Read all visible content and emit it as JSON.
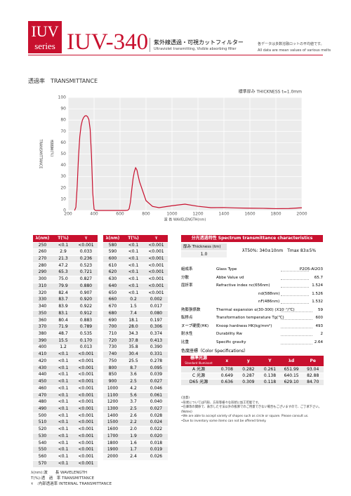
{
  "header": {
    "badge_top": "IUV",
    "badge_bottom": "series",
    "model": "IUV-340",
    "title_ja": "紫外線透過・可視カットフィルター",
    "title_en": "Ultraviolet transmitting, Visible absorbing filter",
    "note_ja": "各データは多数溶融ロットの平均値です。",
    "note_en": "All data are mean values of various melts"
  },
  "section_title": "透過率　TRANSMITTANCE",
  "chart_data": {
    "type": "line",
    "thickness_label": "標準厚み THICKNESS t=1.0mm",
    "ylabel_ja": "透過率(%)",
    "ylabel": "TRANSMITTANCE",
    "xlabel": "波 長 WAVELENGTH(nm)",
    "x": [
      250,
      260,
      270,
      280,
      290,
      300,
      310,
      320,
      330,
      340,
      350,
      360,
      370,
      380,
      390,
      400,
      410,
      450,
      500,
      600,
      640,
      660,
      670,
      680,
      690,
      700,
      710,
      720,
      730,
      740,
      750,
      800,
      850,
      900,
      1000,
      1100,
      1200,
      1300,
      1400,
      1500,
      1600,
      1700,
      1800,
      1900,
      2000
    ],
    "values": [
      0,
      2.9,
      21.3,
      47.2,
      65.3,
      75.0,
      79.9,
      82.4,
      83.7,
      83.9,
      83.1,
      80.4,
      71.9,
      48.7,
      15.5,
      1.2,
      0,
      0,
      0,
      0,
      0,
      0.2,
      1.5,
      7.4,
      18.1,
      28.0,
      34.3,
      37.8,
      35.8,
      30.4,
      25.5,
      8.7,
      3.6,
      2.5,
      4.2,
      5.6,
      3.7,
      2.5,
      2.6,
      2.2,
      2.0,
      1.9,
      1.6,
      1.7,
      2.4
    ],
    "color": "#c8102e",
    "xlim": [
      200,
      2000
    ],
    "xticks": [
      200,
      400,
      600,
      800,
      1000,
      1200,
      1400,
      1600,
      1800,
      2000
    ],
    "ylim": [
      0,
      100
    ],
    "yticks": [
      0,
      10,
      20,
      30,
      40,
      50,
      60,
      70,
      80,
      90,
      100
    ],
    "grid": true
  },
  "transmittance_table": {
    "columns": [
      "λ(nm)",
      "T(%)",
      "τ"
    ],
    "rows": [
      [
        "250",
        "<0.1",
        "<0.001"
      ],
      [
        "260",
        "2.9",
        "0.033"
      ],
      [
        "270",
        "21.3",
        "0.236"
      ],
      [
        "280",
        "47.2",
        "0.523"
      ],
      [
        "290",
        "65.3",
        "0.721"
      ],
      [
        "300",
        "75.0",
        "0.827"
      ],
      [
        "310",
        "79.9",
        "0.880"
      ],
      [
        "320",
        "82.4",
        "0.907"
      ],
      [
        "330",
        "83.7",
        "0.920"
      ],
      [
        "340",
        "83.9",
        "0.922"
      ],
      [
        "350",
        "83.1",
        "0.912"
      ],
      [
        "360",
        "80.4",
        "0.883"
      ],
      [
        "370",
        "71.9",
        "0.789"
      ],
      [
        "380",
        "48.7",
        "0.535"
      ],
      [
        "390",
        "15.5",
        "0.170"
      ],
      [
        "400",
        "1.2",
        "0.013"
      ],
      [
        "410",
        "<0.1",
        "<0.001"
      ],
      [
        "420",
        "<0.1",
        "<0.001"
      ],
      [
        "430",
        "<0.1",
        "<0.001"
      ],
      [
        "440",
        "<0.1",
        "<0.001"
      ],
      [
        "450",
        "<0.1",
        "<0.001"
      ],
      [
        "460",
        "<0.1",
        "<0.001"
      ],
      [
        "470",
        "<0.1",
        "<0.001"
      ],
      [
        "480",
        "<0.1",
        "<0.001"
      ],
      [
        "490",
        "<0.1",
        "<0.001"
      ],
      [
        "500",
        "<0.1",
        "<0.001"
      ],
      [
        "510",
        "<0.1",
        "<0.001"
      ],
      [
        "520",
        "<0.1",
        "<0.001"
      ],
      [
        "530",
        "<0.1",
        "<0.001"
      ],
      [
        "540",
        "<0.1",
        "<0.001"
      ],
      [
        "550",
        "<0.1",
        "<0.001"
      ],
      [
        "560",
        "<0.1",
        "<0.001"
      ],
      [
        "570",
        "<0.1",
        "<0.001"
      ],
      [
        "580",
        "<0.1",
        "<0.001"
      ],
      [
        "590",
        "<0.1",
        "<0.001"
      ],
      [
        "600",
        "<0.1",
        "<0.001"
      ],
      [
        "610",
        "<0.1",
        "<0.001"
      ],
      [
        "620",
        "<0.1",
        "<0.001"
      ],
      [
        "630",
        "<0.1",
        "<0.001"
      ],
      [
        "640",
        "<0.1",
        "<0.001"
      ],
      [
        "650",
        "<0.1",
        "<0.001"
      ],
      [
        "660",
        "0.2",
        "0.002"
      ],
      [
        "670",
        "1.5",
        "0.017"
      ],
      [
        "680",
        "7.4",
        "0.080"
      ],
      [
        "690",
        "18.1",
        "0.197"
      ],
      [
        "700",
        "28.0",
        "0.306"
      ],
      [
        "710",
        "34.3",
        "0.374"
      ],
      [
        "720",
        "37.8",
        "0.413"
      ],
      [
        "730",
        "35.8",
        "0.390"
      ],
      [
        "740",
        "30.4",
        "0.331"
      ],
      [
        "750",
        "25.5",
        "0.278"
      ],
      [
        "800",
        "8.7",
        "0.095"
      ],
      [
        "850",
        "3.6",
        "0.039"
      ],
      [
        "900",
        "2.5",
        "0.027"
      ],
      [
        "1000",
        "4.2",
        "0.046"
      ],
      [
        "1100",
        "5.6",
        "0.061"
      ],
      [
        "1200",
        "3.7",
        "0.040"
      ],
      [
        "1300",
        "2.5",
        "0.027"
      ],
      [
        "1400",
        "2.6",
        "0.028"
      ],
      [
        "1500",
        "2.2",
        "0.024"
      ],
      [
        "1600",
        "2.0",
        "0.022"
      ],
      [
        "1700",
        "1.9",
        "0.020"
      ],
      [
        "1800",
        "1.6",
        "0.018"
      ],
      [
        "1900",
        "1.7",
        "0.019"
      ],
      [
        "2000",
        "2.4",
        "0.026"
      ]
    ]
  },
  "legend": [
    "λ(nm):波　　長 WAVELENGTH",
    "T(%):透　過　率 TRANSMITTANCE",
    "τ　:内部透過率 INTERNAL TRANSMITTANCE"
  ],
  "spectrum": {
    "title": "分光透過特性 Spectrum transmittance characteristics",
    "thickness_label": "厚み Thickness (tm)",
    "spec": "λT50%: 340±10nm　Tmax 83±5%",
    "thickness_value": "1.0"
  },
  "properties": [
    [
      "組成系",
      "Glass Type",
      "P2O5-Al2O3"
    ],
    [
      "分散",
      "Abbe Value νd",
      "65.7"
    ],
    [
      "屈折率",
      "Refractive index nc(656nm)",
      "1.524"
    ],
    [
      "",
      "nd(588nm)",
      "1.526"
    ],
    [
      "",
      "nF(486nm)",
      "1.532"
    ],
    [
      "熱膨張係数",
      "Thermal expansion α(30-300) (X10⁻⁷/℃)",
      "59"
    ],
    [
      "転移点",
      "Transformation temperature Tg(℃)",
      "600"
    ],
    [
      "ヌープ硬度(HK)",
      "Knoop hardness HK(kg/mm²)",
      "493"
    ],
    [
      "耐水性",
      "Durability Rw",
      "2"
    ],
    [
      "比重",
      "Specific gravity",
      "2.64"
    ]
  ],
  "color_spec": {
    "title": "色度座標（Color Specifications）",
    "illuminant_header": [
      "標準光源",
      "Standard Illuminant"
    ],
    "columns": [
      "x",
      "y",
      "Y",
      "λd",
      "Pe"
    ],
    "rows": [
      [
        "A 光源",
        "0.708",
        "0.282",
        "0.261",
        "651.99",
        "93.04"
      ],
      [
        "C 光源",
        "0.649",
        "0.287",
        "0.138",
        "640.15",
        "82.88"
      ],
      [
        "D65 光源",
        "0.636",
        "0.309",
        "0.118",
        "629.10",
        "84.70"
      ]
    ]
  },
  "notes": [
    "(注意)",
    "•形状については円形、方形等様々な形状に加工可能です。",
    "•在庫等の関係で、表示した寸法以外の板厚でのご用意できない場合もございますので、ご了承下さい。",
    "(Notes)",
    "•We are able to accept variety of shapes such as circle or square. Please consult us.",
    "•Due to inventory some items can not be offered timely."
  ]
}
